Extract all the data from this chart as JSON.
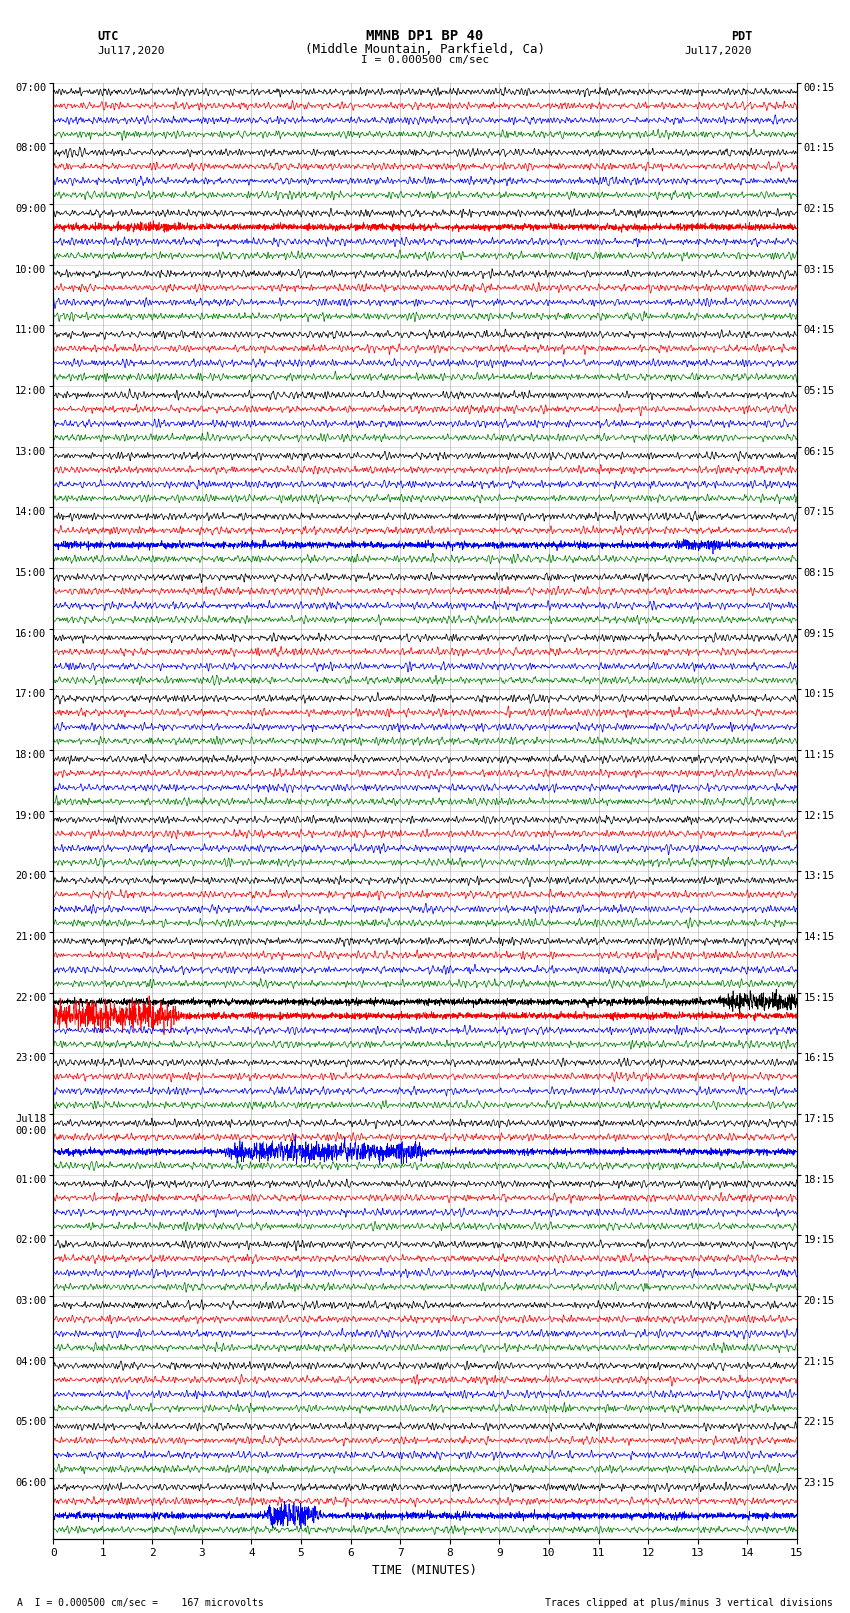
{
  "title_line1": "MMNB DP1 BP 40",
  "title_line2": "(Middle Mountain, Parkfield, Ca)",
  "scale_text": "I = 0.000500 cm/sec",
  "footer_left": "A  I = 0.000500 cm/sec =    167 microvolts",
  "footer_right": "Traces clipped at plus/minus 3 vertical divisions",
  "xlabel": "TIME (MINUTES)",
  "left_label": "UTC",
  "left_date": "Jul17,2020",
  "right_label": "PDT",
  "right_date": "Jul17,2020",
  "utc_times": [
    "07:00",
    "08:00",
    "09:00",
    "10:00",
    "11:00",
    "12:00",
    "13:00",
    "14:00",
    "15:00",
    "16:00",
    "17:00",
    "18:00",
    "19:00",
    "20:00",
    "21:00",
    "22:00",
    "23:00",
    "Jul18\n00:00",
    "01:00",
    "02:00",
    "03:00",
    "04:00",
    "05:00",
    "06:00"
  ],
  "pdt_times": [
    "00:15",
    "01:15",
    "02:15",
    "03:15",
    "04:15",
    "05:15",
    "06:15",
    "07:15",
    "08:15",
    "09:15",
    "10:15",
    "11:15",
    "12:15",
    "13:15",
    "14:15",
    "15:15",
    "16:15",
    "17:15",
    "18:15",
    "19:15",
    "20:15",
    "21:15",
    "22:15",
    "23:15"
  ],
  "trace_colors": [
    "black",
    "red",
    "blue",
    "green"
  ],
  "bg_color": "white",
  "xmin": 0,
  "xmax": 15,
  "n_groups": 24,
  "n_traces_per_group": 4,
  "grid_color": "#888888",
  "figsize": [
    8.5,
    16.13
  ],
  "dpi": 100,
  "special_events": [
    {
      "group": 2,
      "trace": 1,
      "xstart": 1.5,
      "xend": 2.5,
      "amp": 0.25
    },
    {
      "group": 7,
      "trace": 2,
      "xstart": 12.5,
      "xend": 13.5,
      "amp": 0.3
    },
    {
      "group": 15,
      "trace": 1,
      "xstart": 0.0,
      "xend": 2.5,
      "amp": 0.9
    },
    {
      "group": 15,
      "trace": 0,
      "xstart": 13.5,
      "xend": 15.0,
      "amp": 0.5
    },
    {
      "group": 17,
      "trace": 2,
      "xstart": 3.5,
      "xend": 7.5,
      "amp": 0.6
    },
    {
      "group": 23,
      "trace": 2,
      "xstart": 4.3,
      "xend": 5.3,
      "amp": 0.9
    }
  ]
}
